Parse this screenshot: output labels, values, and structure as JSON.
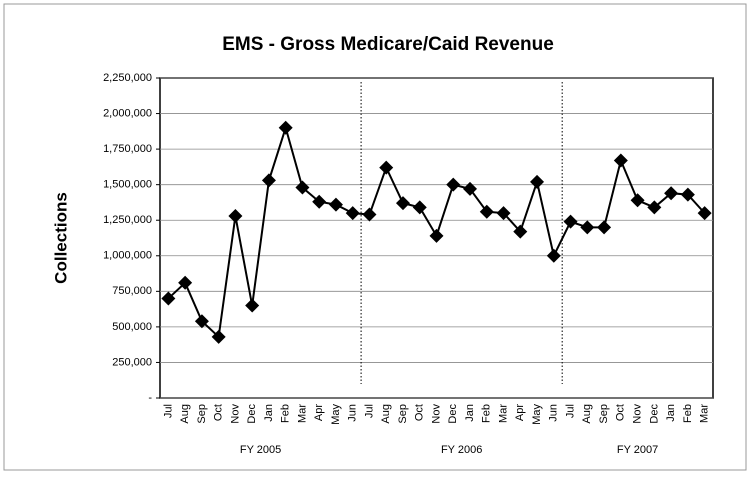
{
  "chart_data": {
    "type": "line",
    "title": "EMS - Gross Medicare/Caid Revenue",
    "ylabel": "Collections",
    "groups": [
      {
        "name": "FY 2005",
        "categories": [
          "Jul",
          "Aug",
          "Sep",
          "Oct",
          "Nov",
          "Dec",
          "Jan",
          "Feb",
          "Mar",
          "Apr",
          "May",
          "Jun"
        ]
      },
      {
        "name": "FY 2006",
        "categories": [
          "Jul",
          "Aug",
          "Sep",
          "Oct",
          "Nov",
          "Dec",
          "Jan",
          "Feb",
          "Mar",
          "Apr",
          "May",
          "Jun"
        ]
      },
      {
        "name": "FY 2007",
        "categories": [
          "Jul",
          "Aug",
          "Sep",
          "Oct",
          "Nov",
          "Dec",
          "Jan",
          "Feb",
          "Mar"
        ]
      }
    ],
    "series": [
      {
        "color": "#000000",
        "values": [
          700000,
          810000,
          540000,
          430000,
          1280000,
          650000,
          1530000,
          1900000,
          1480000,
          1380000,
          1360000,
          1300000,
          1290000,
          1620000,
          1370000,
          1340000,
          1140000,
          1500000,
          1470000,
          1310000,
          1300000,
          1170000,
          1520000,
          1000000,
          1240000,
          1200000,
          1200000,
          1670000,
          1390000,
          1340000,
          1440000,
          1430000,
          1300000
        ]
      }
    ],
    "ylim": [
      0,
      2250000
    ],
    "yticks": [
      {
        "value": 0,
        "label": "-"
      },
      {
        "value": 250000,
        "label": "250,000"
      },
      {
        "value": 500000,
        "label": "500,000"
      },
      {
        "value": 750000,
        "label": "750,000"
      },
      {
        "value": 1000000,
        "label": "1,000,000"
      },
      {
        "value": 1250000,
        "label": "1,250,000"
      },
      {
        "value": 1500000,
        "label": "1,500,000"
      },
      {
        "value": 1750000,
        "label": "1,750,000"
      },
      {
        "value": 2000000,
        "label": "2,000,000"
      },
      {
        "value": 2250000,
        "label": "2,250,000"
      }
    ],
    "grid": true
  }
}
